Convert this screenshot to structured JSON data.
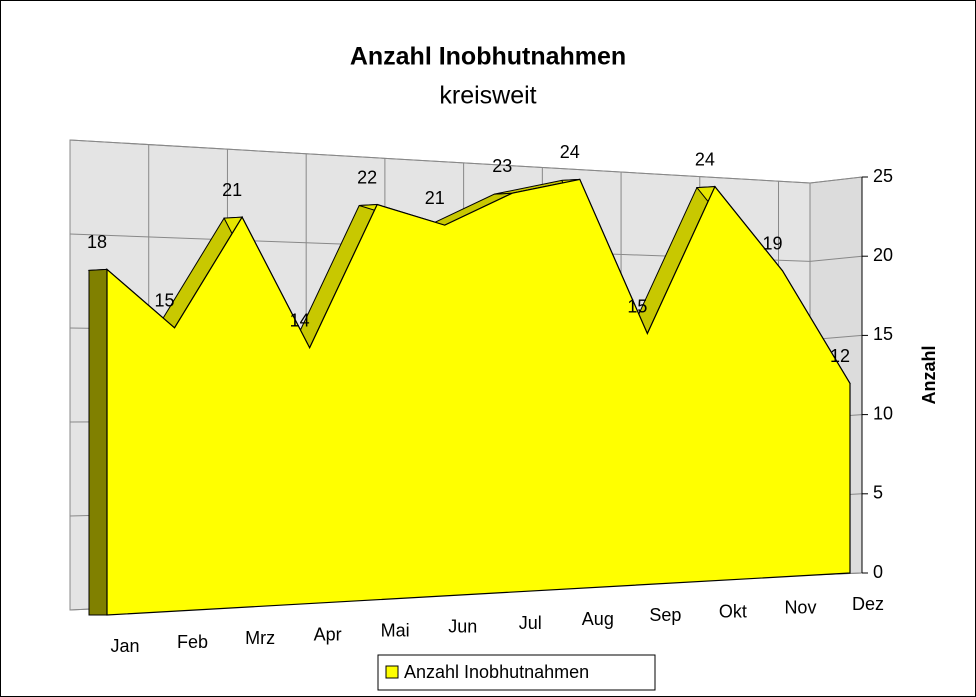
{
  "chart_data": {
    "type": "area3d",
    "title": "Anzahl Inobhutnahmen",
    "subtitle": "kreisweit",
    "categories": [
      "Jan",
      "Feb",
      "Mrz",
      "Apr",
      "Mai",
      "Jun",
      "Jul",
      "Aug",
      "Sep",
      "Okt",
      "Nov",
      "Dez"
    ],
    "series": [
      {
        "name": "Anzahl Inobhutnahmen",
        "color": "#ffff00",
        "values": [
          18,
          15,
          21,
          14,
          22,
          21,
          23,
          24,
          15,
          24,
          19,
          12
        ]
      }
    ],
    "y_label": "Anzahl",
    "ylim": [
      0,
      25
    ],
    "yticks": [
      0,
      5,
      10,
      15,
      20,
      25
    ],
    "grid": true,
    "legend": "bottom"
  }
}
